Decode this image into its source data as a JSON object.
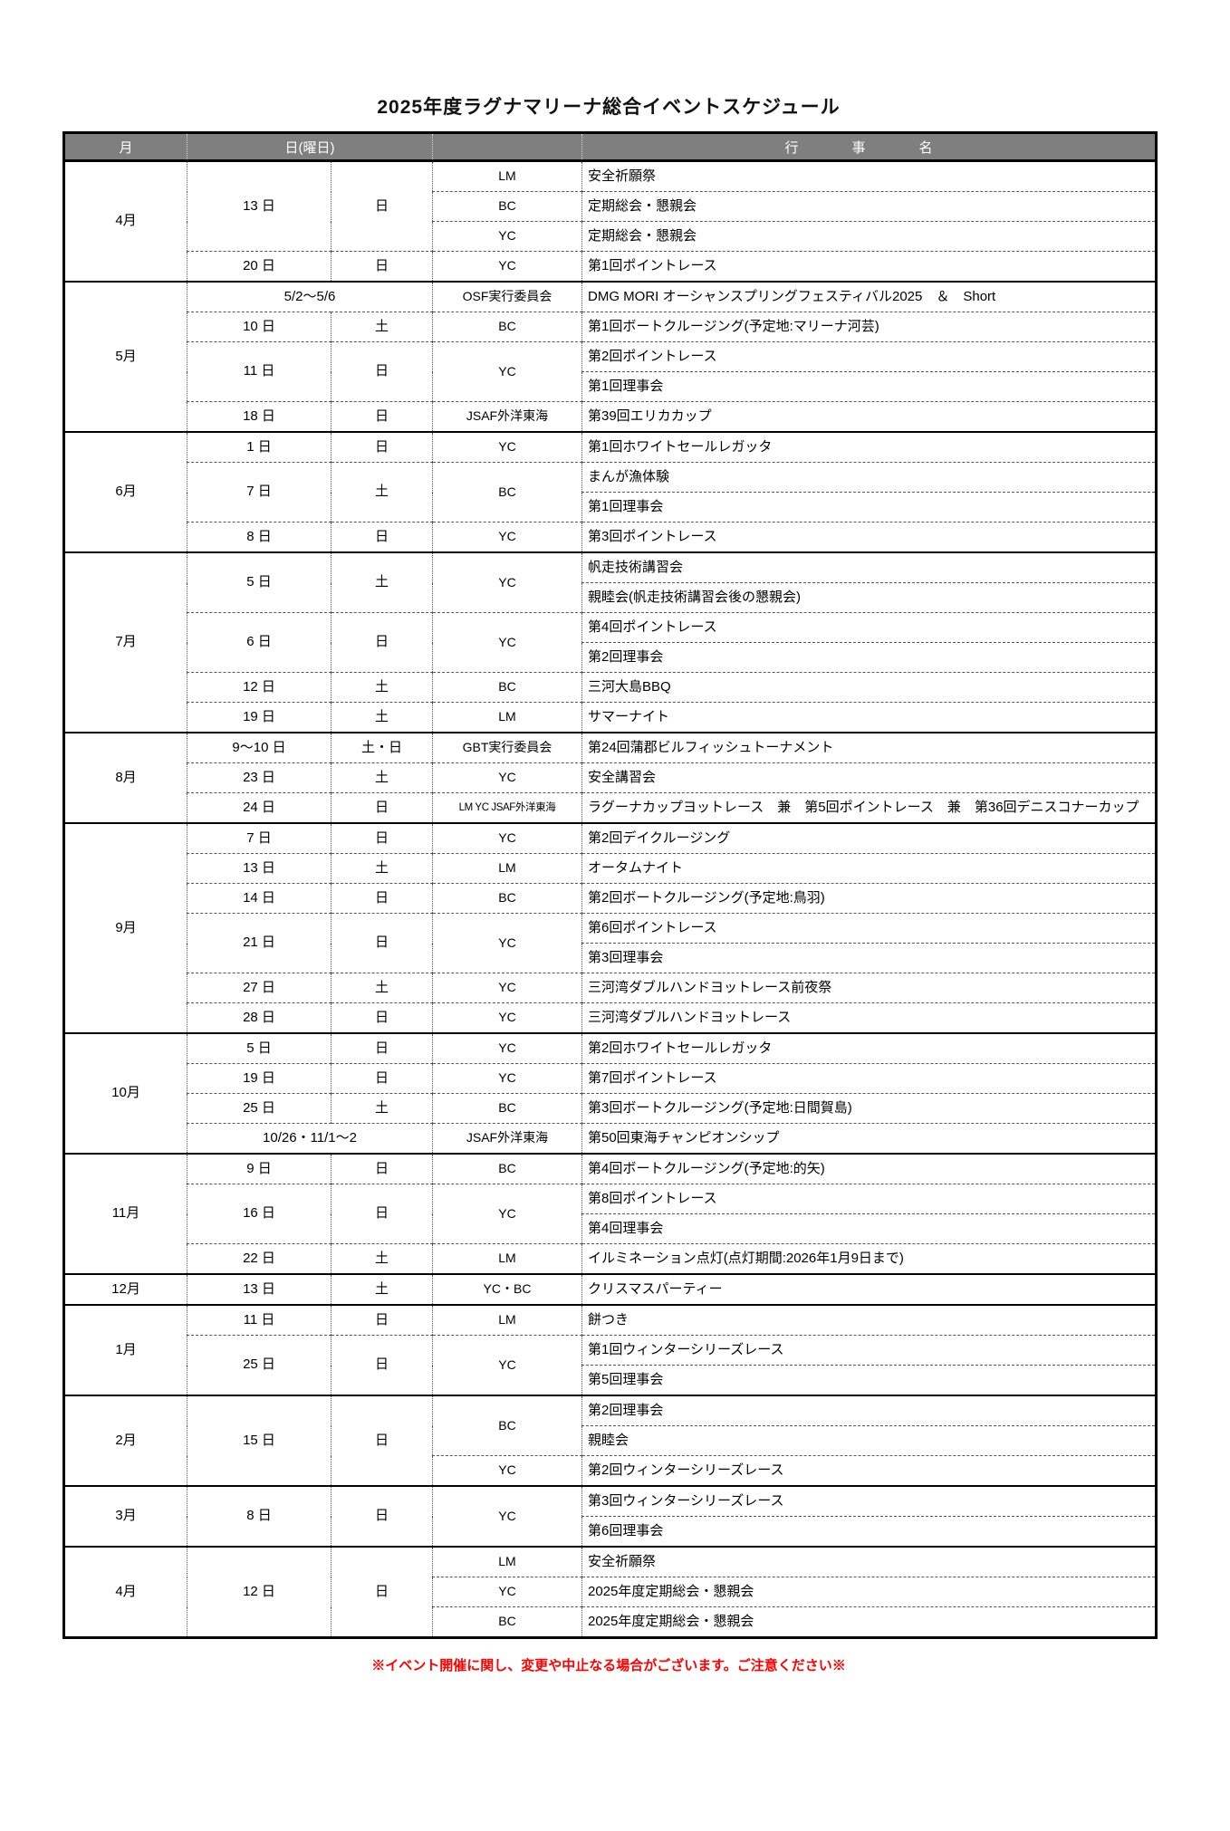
{
  "title": "2025年度ラグナマリーナ総合イベントスケジュール",
  "notice": "※イベント開催に関し、変更や中止なる場合がございます。ご注意ください※",
  "colors": {
    "header_bg": "#7f7f7f",
    "header_text": "#ffffff",
    "notice_text": "#ff0000",
    "border": "#000000"
  },
  "table": {
    "header": [
      {
        "text": "月",
        "type": "month"
      },
      {
        "text": "日(曜日)",
        "type": "date",
        "colspan": 2
      },
      {
        "text": "",
        "type": "org"
      },
      {
        "text": "行　事　名",
        "type": "event"
      }
    ],
    "rows": [
      {
        "month_start": true,
        "cells": [
          {
            "text": "4月",
            "type": "month",
            "rowspan": 4
          },
          {
            "text": "13 日",
            "type": "date",
            "rowspan": 3
          },
          {
            "text": "日",
            "type": "day",
            "rowspan": 3
          },
          {
            "text": "LM",
            "type": "org"
          },
          {
            "text": "安全祈願祭",
            "type": "event"
          }
        ]
      },
      {
        "cells": [
          {
            "text": "BC",
            "type": "org"
          },
          {
            "text": "定期総会・懇親会",
            "type": "event"
          }
        ]
      },
      {
        "cells": [
          {
            "text": "YC",
            "type": "org"
          },
          {
            "text": "定期総会・懇親会",
            "type": "event"
          }
        ]
      },
      {
        "cells": [
          {
            "text": "20 日",
            "type": "date"
          },
          {
            "text": "日",
            "type": "day"
          },
          {
            "text": "YC",
            "type": "org"
          },
          {
            "text": "第1回ポイントレース",
            "type": "event"
          }
        ]
      },
      {
        "month_start": true,
        "cells": [
          {
            "text": "5月",
            "type": "month",
            "rowspan": 5
          },
          {
            "text": "5/2～5/6",
            "type": "date",
            "colspan": 2
          },
          {
            "text": "OSF実行委員会",
            "type": "org"
          },
          {
            "text": "DMG MORI オーシャンスプリングフェスティバル2025　＆　Short",
            "type": "event"
          }
        ]
      },
      {
        "cells": [
          {
            "text": "10 日",
            "type": "date"
          },
          {
            "text": "土",
            "type": "day"
          },
          {
            "text": "BC",
            "type": "org"
          },
          {
            "text": "第1回ボートクルージング(予定地:マリーナ河芸)",
            "type": "event"
          }
        ]
      },
      {
        "cells": [
          {
            "text": "11 日",
            "type": "date",
            "rowspan": 2
          },
          {
            "text": "日",
            "type": "day",
            "rowspan": 2
          },
          {
            "text": "YC",
            "type": "org",
            "rowspan": 2
          },
          {
            "text": "第2回ポイントレース",
            "type": "event"
          }
        ]
      },
      {
        "cells": [
          {
            "text": "第1回理事会",
            "type": "event"
          }
        ]
      },
      {
        "cells": [
          {
            "text": "18 日",
            "type": "date"
          },
          {
            "text": "日",
            "type": "day"
          },
          {
            "text": "JSAF外洋東海",
            "type": "org"
          },
          {
            "text": "第39回エリカカップ",
            "type": "event"
          }
        ]
      },
      {
        "month_start": true,
        "cells": [
          {
            "text": "6月",
            "type": "month",
            "rowspan": 4
          },
          {
            "text": "1 日",
            "type": "date"
          },
          {
            "text": "日",
            "type": "day"
          },
          {
            "text": "YC",
            "type": "org"
          },
          {
            "text": "第1回ホワイトセールレガッタ",
            "type": "event"
          }
        ]
      },
      {
        "cells": [
          {
            "text": "7 日",
            "type": "date",
            "rowspan": 2
          },
          {
            "text": "土",
            "type": "day",
            "rowspan": 2
          },
          {
            "text": "BC",
            "type": "org",
            "rowspan": 2
          },
          {
            "text": "まんが漁体験",
            "type": "event"
          }
        ]
      },
      {
        "cells": [
          {
            "text": "第1回理事会",
            "type": "event"
          }
        ]
      },
      {
        "cells": [
          {
            "text": "8 日",
            "type": "date"
          },
          {
            "text": "日",
            "type": "day"
          },
          {
            "text": "YC",
            "type": "org"
          },
          {
            "text": "第3回ポイントレース",
            "type": "event"
          }
        ]
      },
      {
        "month_start": true,
        "cells": [
          {
            "text": "7月",
            "type": "month",
            "rowspan": 6
          },
          {
            "text": "5 日",
            "type": "date",
            "rowspan": 2
          },
          {
            "text": "土",
            "type": "day",
            "rowspan": 2
          },
          {
            "text": "YC",
            "type": "org",
            "rowspan": 2
          },
          {
            "text": "帆走技術講習会",
            "type": "event"
          }
        ]
      },
      {
        "cells": [
          {
            "text": "親睦会(帆走技術講習会後の懇親会)",
            "type": "event"
          }
        ]
      },
      {
        "cells": [
          {
            "text": "6 日",
            "type": "date",
            "rowspan": 2
          },
          {
            "text": "日",
            "type": "day",
            "rowspan": 2
          },
          {
            "text": "YC",
            "type": "org",
            "rowspan": 2
          },
          {
            "text": "第4回ポイントレース",
            "type": "event"
          }
        ]
      },
      {
        "cells": [
          {
            "text": "第2回理事会",
            "type": "event"
          }
        ]
      },
      {
        "cells": [
          {
            "text": "12 日",
            "type": "date"
          },
          {
            "text": "土",
            "type": "day"
          },
          {
            "text": "BC",
            "type": "org"
          },
          {
            "text": "三河大島BBQ",
            "type": "event"
          }
        ]
      },
      {
        "cells": [
          {
            "text": "19 日",
            "type": "date"
          },
          {
            "text": "土",
            "type": "day"
          },
          {
            "text": "LM",
            "type": "org"
          },
          {
            "text": "サマーナイト",
            "type": "event"
          }
        ]
      },
      {
        "month_start": true,
        "cells": [
          {
            "text": "8月",
            "type": "month",
            "rowspan": 3
          },
          {
            "text": "9～10 日",
            "type": "date"
          },
          {
            "text": "土・日",
            "type": "day"
          },
          {
            "text": "GBT実行委員会",
            "type": "org"
          },
          {
            "text": "第24回蒲郡ビルフィッシュトーナメント",
            "type": "event"
          }
        ]
      },
      {
        "cells": [
          {
            "text": "23 日",
            "type": "date"
          },
          {
            "text": "土",
            "type": "day"
          },
          {
            "text": "YC",
            "type": "org"
          },
          {
            "text": "安全講習会",
            "type": "event"
          }
        ]
      },
      {
        "cells": [
          {
            "text": "24 日",
            "type": "date"
          },
          {
            "text": "日",
            "type": "day"
          },
          {
            "text": "LM YC JSAF外洋東海",
            "type": "org",
            "small": true
          },
          {
            "text": "ラグーナカップヨットレース　兼　第5回ポイントレース　兼　第36回デニスコナーカップ",
            "type": "event"
          }
        ]
      },
      {
        "month_start": true,
        "cells": [
          {
            "text": "9月",
            "type": "month",
            "rowspan": 7
          },
          {
            "text": "7 日",
            "type": "date"
          },
          {
            "text": "日",
            "type": "day"
          },
          {
            "text": "YC",
            "type": "org"
          },
          {
            "text": "第2回デイクルージング",
            "type": "event"
          }
        ]
      },
      {
        "cells": [
          {
            "text": "13 日",
            "type": "date"
          },
          {
            "text": "土",
            "type": "day"
          },
          {
            "text": "LM",
            "type": "org"
          },
          {
            "text": "オータムナイト",
            "type": "event"
          }
        ]
      },
      {
        "cells": [
          {
            "text": "14 日",
            "type": "date"
          },
          {
            "text": "日",
            "type": "day"
          },
          {
            "text": "BC",
            "type": "org"
          },
          {
            "text": "第2回ボートクルージング(予定地:鳥羽)",
            "type": "event"
          }
        ]
      },
      {
        "cells": [
          {
            "text": "21 日",
            "type": "date",
            "rowspan": 2
          },
          {
            "text": "日",
            "type": "day",
            "rowspan": 2
          },
          {
            "text": "YC",
            "type": "org",
            "rowspan": 2
          },
          {
            "text": "第6回ポイントレース",
            "type": "event"
          }
        ]
      },
      {
        "cells": [
          {
            "text": "第3回理事会",
            "type": "event"
          }
        ]
      },
      {
        "cells": [
          {
            "text": "27 日",
            "type": "date"
          },
          {
            "text": "土",
            "type": "day"
          },
          {
            "text": "YC",
            "type": "org"
          },
          {
            "text": "三河湾ダブルハンドヨットレース前夜祭",
            "type": "event"
          }
        ]
      },
      {
        "cells": [
          {
            "text": "28 日",
            "type": "date"
          },
          {
            "text": "日",
            "type": "day"
          },
          {
            "text": "YC",
            "type": "org"
          },
          {
            "text": "三河湾ダブルハンドヨットレース",
            "type": "event"
          }
        ]
      },
      {
        "month_start": true,
        "cells": [
          {
            "text": "10月",
            "type": "month",
            "rowspan": 4
          },
          {
            "text": "5 日",
            "type": "date"
          },
          {
            "text": "日",
            "type": "day"
          },
          {
            "text": "YC",
            "type": "org"
          },
          {
            "text": "第2回ホワイトセールレガッタ",
            "type": "event"
          }
        ]
      },
      {
        "cells": [
          {
            "text": "19 日",
            "type": "date"
          },
          {
            "text": "日",
            "type": "day"
          },
          {
            "text": "YC",
            "type": "org"
          },
          {
            "text": "第7回ポイントレース",
            "type": "event"
          }
        ]
      },
      {
        "cells": [
          {
            "text": "25 日",
            "type": "date"
          },
          {
            "text": "土",
            "type": "day"
          },
          {
            "text": "BC",
            "type": "org"
          },
          {
            "text": "第3回ボートクルージング(予定地:日間賀島)",
            "type": "event"
          }
        ]
      },
      {
        "cells": [
          {
            "text": "10/26・11/1～2",
            "type": "date",
            "colspan": 2
          },
          {
            "text": "JSAF外洋東海",
            "type": "org"
          },
          {
            "text": "第50回東海チャンピオンシップ",
            "type": "event"
          }
        ]
      },
      {
        "month_start": true,
        "cells": [
          {
            "text": "11月",
            "type": "month",
            "rowspan": 4
          },
          {
            "text": "9 日",
            "type": "date"
          },
          {
            "text": "日",
            "type": "day"
          },
          {
            "text": "BC",
            "type": "org"
          },
          {
            "text": "第4回ボートクルージング(予定地:的矢)",
            "type": "event"
          }
        ]
      },
      {
        "cells": [
          {
            "text": "16 日",
            "type": "date",
            "rowspan": 2
          },
          {
            "text": "日",
            "type": "day",
            "rowspan": 2
          },
          {
            "text": "YC",
            "type": "org",
            "rowspan": 2
          },
          {
            "text": "第8回ポイントレース",
            "type": "event"
          }
        ]
      },
      {
        "cells": [
          {
            "text": "第4回理事会",
            "type": "event"
          }
        ]
      },
      {
        "cells": [
          {
            "text": "22 日",
            "type": "date"
          },
          {
            "text": "土",
            "type": "day"
          },
          {
            "text": "LM",
            "type": "org"
          },
          {
            "text": "イルミネーション点灯(点灯期間:2026年1月9日まで)",
            "type": "event"
          }
        ]
      },
      {
        "month_start": true,
        "cells": [
          {
            "text": "12月",
            "type": "month"
          },
          {
            "text": "13 日",
            "type": "date"
          },
          {
            "text": "土",
            "type": "day"
          },
          {
            "text": "YC・BC",
            "type": "org"
          },
          {
            "text": "クリスマスパーティー",
            "type": "event"
          }
        ]
      },
      {
        "month_start": true,
        "cells": [
          {
            "text": "1月",
            "type": "month",
            "rowspan": 3
          },
          {
            "text": "11 日",
            "type": "date"
          },
          {
            "text": "日",
            "type": "day"
          },
          {
            "text": "LM",
            "type": "org"
          },
          {
            "text": "餅つき",
            "type": "event"
          }
        ]
      },
      {
        "cells": [
          {
            "text": "25 日",
            "type": "date",
            "rowspan": 2
          },
          {
            "text": "日",
            "type": "day",
            "rowspan": 2
          },
          {
            "text": "YC",
            "type": "org",
            "rowspan": 2
          },
          {
            "text": "第1回ウィンターシリーズレース",
            "type": "event"
          }
        ]
      },
      {
        "cells": [
          {
            "text": "第5回理事会",
            "type": "event"
          }
        ]
      },
      {
        "month_start": true,
        "cells": [
          {
            "text": "2月",
            "type": "month",
            "rowspan": 3
          },
          {
            "text": "15 日",
            "type": "date",
            "rowspan": 3
          },
          {
            "text": "日",
            "type": "day",
            "rowspan": 3
          },
          {
            "text": "BC",
            "type": "org",
            "rowspan": 2
          },
          {
            "text": "第2回理事会",
            "type": "event"
          }
        ]
      },
      {
        "cells": [
          {
            "text": "親睦会",
            "type": "event"
          }
        ]
      },
      {
        "cells": [
          {
            "text": "YC",
            "type": "org"
          },
          {
            "text": "第2回ウィンターシリーズレース",
            "type": "event"
          }
        ]
      },
      {
        "month_start": true,
        "cells": [
          {
            "text": "3月",
            "type": "month",
            "rowspan": 2
          },
          {
            "text": "8 日",
            "type": "date",
            "rowspan": 2
          },
          {
            "text": "日",
            "type": "day",
            "rowspan": 2
          },
          {
            "text": "YC",
            "type": "org",
            "rowspan": 2
          },
          {
            "text": "第3回ウィンターシリーズレース",
            "type": "event"
          }
        ]
      },
      {
        "cells": [
          {
            "text": "第6回理事会",
            "type": "event"
          }
        ]
      },
      {
        "month_start": true,
        "cells": [
          {
            "text": "4月",
            "type": "month",
            "rowspan": 3
          },
          {
            "text": "12 日",
            "type": "date",
            "rowspan": 3
          },
          {
            "text": "日",
            "type": "day",
            "rowspan": 3
          },
          {
            "text": "LM",
            "type": "org"
          },
          {
            "text": "安全祈願祭",
            "type": "event"
          }
        ]
      },
      {
        "cells": [
          {
            "text": "YC",
            "type": "org"
          },
          {
            "text": "2025年度定期総会・懇親会",
            "type": "event"
          }
        ]
      },
      {
        "cells": [
          {
            "text": "BC",
            "type": "org"
          },
          {
            "text": "2025年度定期総会・懇親会",
            "type": "event"
          }
        ]
      }
    ]
  }
}
